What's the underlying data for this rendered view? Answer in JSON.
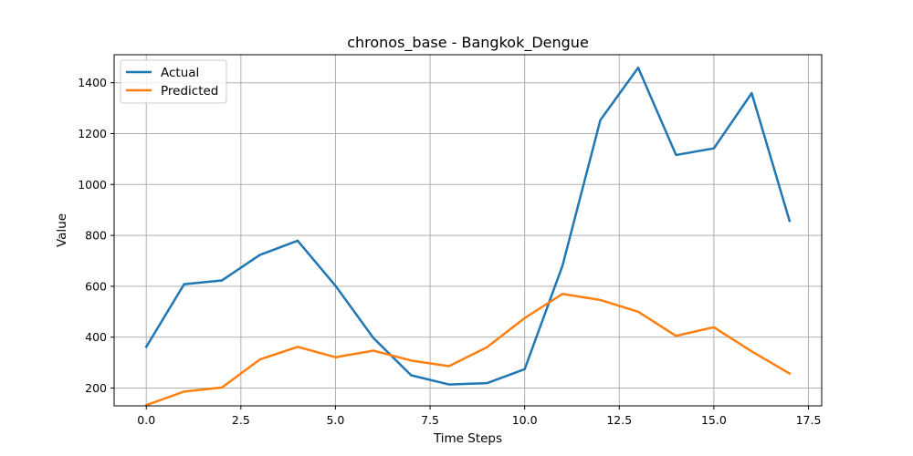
{
  "chart_data": {
    "type": "line",
    "title": "chronos_base - Bangkok_Dengue",
    "xlabel": "Time Steps",
    "ylabel": "Value",
    "xlim": [
      -0.85,
      17.85
    ],
    "ylim": [
      130,
      1510
    ],
    "xticks": [
      0,
      2.5,
      5,
      7.5,
      10,
      12.5,
      15,
      17.5
    ],
    "xtick_labels": [
      "0.0",
      "2.5",
      "5.0",
      "7.5",
      "10.0",
      "12.5",
      "15.0",
      "17.5"
    ],
    "yticks": [
      200,
      400,
      600,
      800,
      1000,
      1200,
      1400
    ],
    "ytick_labels": [
      "200",
      "400",
      "600",
      "800",
      "1000",
      "1200",
      "1400"
    ],
    "grid": true,
    "legend_position": "top-left",
    "x": [
      0,
      1,
      2,
      3,
      4,
      5,
      6,
      7,
      8,
      9,
      10,
      11,
      12,
      13,
      14,
      15,
      16,
      17
    ],
    "series": [
      {
        "name": "Actual",
        "color": "#1f77b4",
        "values": [
          362,
          608,
          623,
          723,
          779,
          602,
          397,
          250,
          214,
          219,
          274,
          681,
          1253,
          1459,
          1116,
          1142,
          1359,
          857
        ]
      },
      {
        "name": "Predicted",
        "color": "#ff7f0e",
        "values": [
          133,
          186,
          202,
          312,
          362,
          321,
          347,
          308,
          286,
          360,
          475,
          570,
          546,
          500,
          405,
          439,
          344,
          257
        ]
      }
    ]
  }
}
